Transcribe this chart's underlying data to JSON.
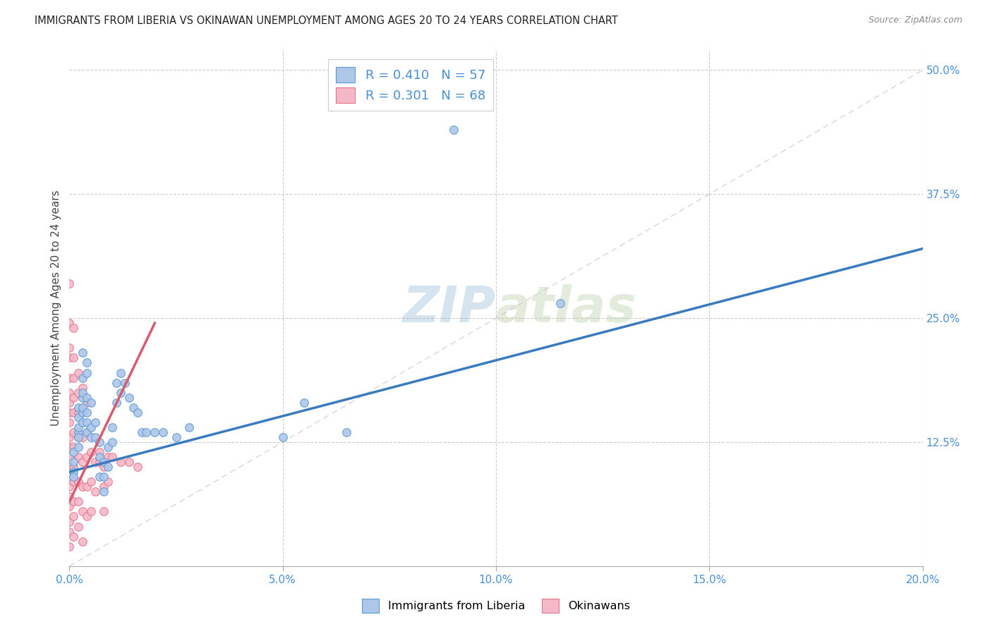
{
  "title": "IMMIGRANTS FROM LIBERIA VS OKINAWAN UNEMPLOYMENT AMONG AGES 20 TO 24 YEARS CORRELATION CHART",
  "source": "Source: ZipAtlas.com",
  "ylabel": "Unemployment Among Ages 20 to 24 years",
  "legend1_label": "Immigrants from Liberia",
  "legend2_label": "Okinawans",
  "r1": 0.41,
  "n1": 57,
  "r2": 0.301,
  "n2": 68,
  "color_blue_fill": "#aec6e8",
  "color_pink_fill": "#f5b8c8",
  "color_blue_edge": "#5b9bd5",
  "color_pink_edge": "#e8748a",
  "color_blue_line": "#3a7abf",
  "color_pink_line": "#d95b6e",
  "color_diag": "#cccccc",
  "color_text": "#4a90d9",
  "color_axis_text": "#4a90d9",
  "background": "#ffffff",
  "watermark_text": "ZIPatlas",
  "xlim": [
    0.0,
    0.2
  ],
  "ylim": [
    0.0,
    0.52
  ],
  "x_tick_vals": [
    0.0,
    0.05,
    0.1,
    0.15,
    0.2
  ],
  "y_tick_vals": [
    0.125,
    0.25,
    0.375,
    0.5
  ],
  "blue_line_x": [
    0.0,
    0.2
  ],
  "blue_line_y": [
    0.095,
    0.32
  ],
  "pink_line_x": [
    0.0,
    0.02
  ],
  "pink_line_y": [
    0.065,
    0.245
  ],
  "diag_line_x": [
    0.0,
    0.2
  ],
  "diag_line_y": [
    0.0,
    0.5
  ],
  "blue_scatter": [
    [
      0.001,
      0.105
    ],
    [
      0.001,
      0.095
    ],
    [
      0.001,
      0.115
    ],
    [
      0.001,
      0.09
    ],
    [
      0.002,
      0.135
    ],
    [
      0.002,
      0.14
    ],
    [
      0.002,
      0.13
    ],
    [
      0.002,
      0.15
    ],
    [
      0.002,
      0.16
    ],
    [
      0.002,
      0.12
    ],
    [
      0.003,
      0.215
    ],
    [
      0.003,
      0.19
    ],
    [
      0.003,
      0.17
    ],
    [
      0.003,
      0.155
    ],
    [
      0.003,
      0.16
    ],
    [
      0.003,
      0.145
    ],
    [
      0.003,
      0.175
    ],
    [
      0.004,
      0.205
    ],
    [
      0.004,
      0.195
    ],
    [
      0.004,
      0.17
    ],
    [
      0.004,
      0.155
    ],
    [
      0.004,
      0.145
    ],
    [
      0.004,
      0.135
    ],
    [
      0.005,
      0.165
    ],
    [
      0.005,
      0.14
    ],
    [
      0.005,
      0.13
    ],
    [
      0.006,
      0.145
    ],
    [
      0.006,
      0.13
    ],
    [
      0.007,
      0.125
    ],
    [
      0.007,
      0.11
    ],
    [
      0.007,
      0.09
    ],
    [
      0.008,
      0.105
    ],
    [
      0.008,
      0.09
    ],
    [
      0.008,
      0.075
    ],
    [
      0.009,
      0.12
    ],
    [
      0.009,
      0.1
    ],
    [
      0.01,
      0.14
    ],
    [
      0.01,
      0.125
    ],
    [
      0.011,
      0.185
    ],
    [
      0.011,
      0.165
    ],
    [
      0.012,
      0.195
    ],
    [
      0.012,
      0.175
    ],
    [
      0.013,
      0.185
    ],
    [
      0.014,
      0.17
    ],
    [
      0.015,
      0.16
    ],
    [
      0.016,
      0.155
    ],
    [
      0.017,
      0.135
    ],
    [
      0.018,
      0.135
    ],
    [
      0.02,
      0.135
    ],
    [
      0.022,
      0.135
    ],
    [
      0.025,
      0.13
    ],
    [
      0.028,
      0.14
    ],
    [
      0.05,
      0.13
    ],
    [
      0.055,
      0.165
    ],
    [
      0.065,
      0.135
    ],
    [
      0.09,
      0.44
    ],
    [
      0.115,
      0.265
    ]
  ],
  "pink_scatter": [
    [
      0.0,
      0.285
    ],
    [
      0.0,
      0.245
    ],
    [
      0.0,
      0.22
    ],
    [
      0.0,
      0.21
    ],
    [
      0.0,
      0.19
    ],
    [
      0.0,
      0.175
    ],
    [
      0.0,
      0.165
    ],
    [
      0.0,
      0.155
    ],
    [
      0.0,
      0.145
    ],
    [
      0.0,
      0.13
    ],
    [
      0.0,
      0.12
    ],
    [
      0.0,
      0.11
    ],
    [
      0.0,
      0.1
    ],
    [
      0.0,
      0.09
    ],
    [
      0.0,
      0.08
    ],
    [
      0.0,
      0.07
    ],
    [
      0.0,
      0.06
    ],
    [
      0.0,
      0.045
    ],
    [
      0.0,
      0.035
    ],
    [
      0.0,
      0.02
    ],
    [
      0.001,
      0.24
    ],
    [
      0.001,
      0.21
    ],
    [
      0.001,
      0.19
    ],
    [
      0.001,
      0.17
    ],
    [
      0.001,
      0.155
    ],
    [
      0.001,
      0.135
    ],
    [
      0.001,
      0.12
    ],
    [
      0.001,
      0.1
    ],
    [
      0.001,
      0.085
    ],
    [
      0.001,
      0.065
    ],
    [
      0.001,
      0.05
    ],
    [
      0.001,
      0.03
    ],
    [
      0.002,
      0.195
    ],
    [
      0.002,
      0.175
    ],
    [
      0.002,
      0.155
    ],
    [
      0.002,
      0.13
    ],
    [
      0.002,
      0.11
    ],
    [
      0.002,
      0.085
    ],
    [
      0.002,
      0.065
    ],
    [
      0.002,
      0.04
    ],
    [
      0.003,
      0.18
    ],
    [
      0.003,
      0.155
    ],
    [
      0.003,
      0.13
    ],
    [
      0.003,
      0.105
    ],
    [
      0.003,
      0.08
    ],
    [
      0.003,
      0.055
    ],
    [
      0.003,
      0.025
    ],
    [
      0.004,
      0.165
    ],
    [
      0.004,
      0.135
    ],
    [
      0.004,
      0.11
    ],
    [
      0.004,
      0.08
    ],
    [
      0.004,
      0.05
    ],
    [
      0.005,
      0.115
    ],
    [
      0.005,
      0.085
    ],
    [
      0.005,
      0.055
    ],
    [
      0.006,
      0.105
    ],
    [
      0.006,
      0.075
    ],
    [
      0.007,
      0.115
    ],
    [
      0.007,
      0.105
    ],
    [
      0.008,
      0.1
    ],
    [
      0.008,
      0.08
    ],
    [
      0.008,
      0.055
    ],
    [
      0.009,
      0.11
    ],
    [
      0.009,
      0.085
    ],
    [
      0.01,
      0.11
    ],
    [
      0.012,
      0.105
    ],
    [
      0.014,
      0.105
    ],
    [
      0.016,
      0.1
    ]
  ]
}
